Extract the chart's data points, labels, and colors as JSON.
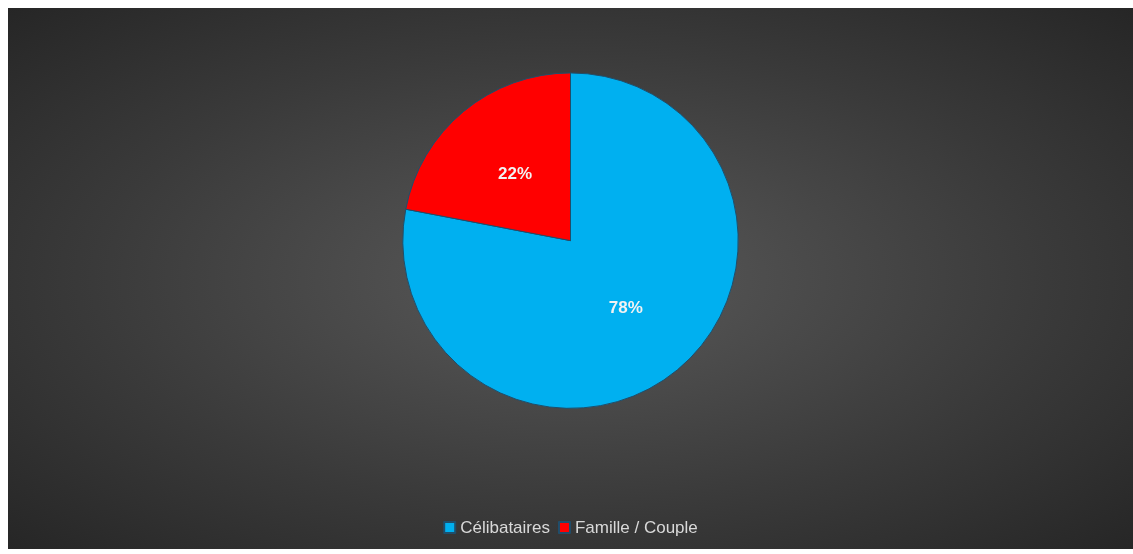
{
  "chart_data": {
    "type": "pie",
    "categories": [
      "Célibataires",
      "Famille / Couple"
    ],
    "values": [
      78,
      22
    ],
    "colors": [
      "#00b0f0",
      "#ff0000"
    ],
    "value_labels": [
      "78%",
      "22%"
    ],
    "legend": "bottom"
  }
}
